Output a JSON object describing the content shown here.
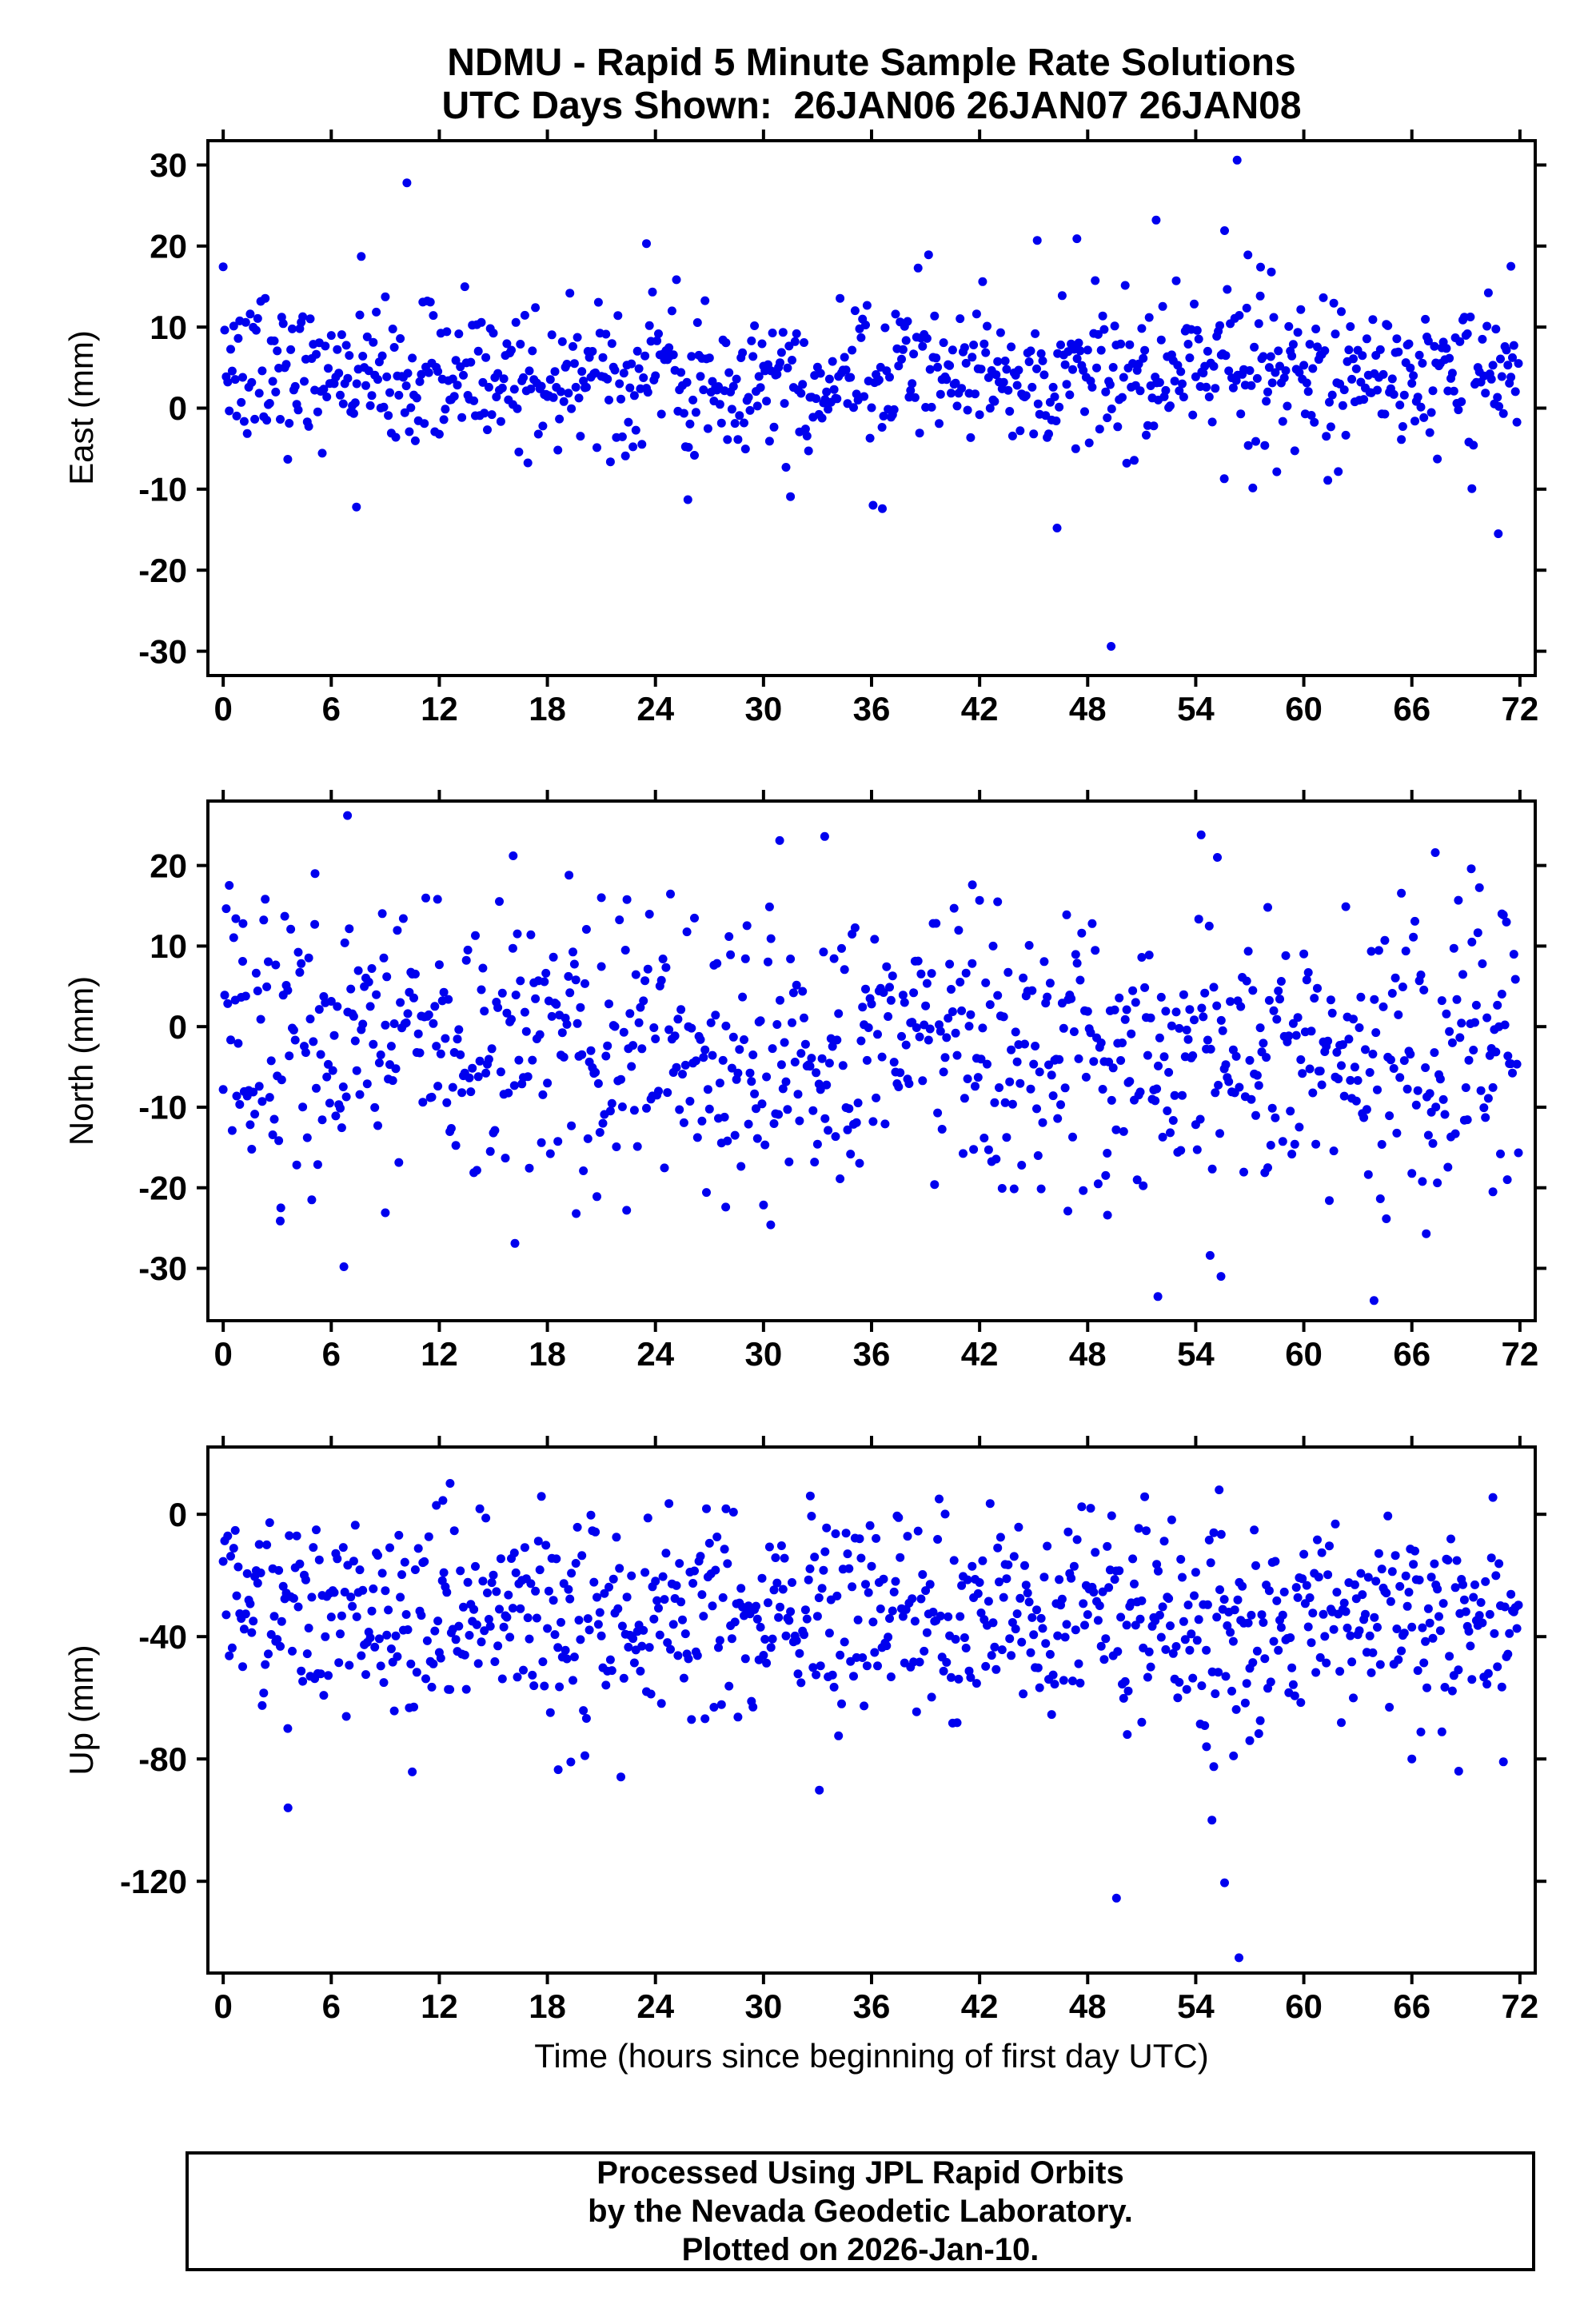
{
  "chart_data": {
    "type": "scatter",
    "title": "NDMU - Rapid 5 Minute Sample Rate Solutions",
    "subtitle": "UTC Days Shown:  26JAN06 26JAN07 26JAN08",
    "xlabel": "Time (hours since beginning of first day UTC)",
    "xlim": [
      -0.85,
      72.85
    ],
    "xticks": [
      0,
      6,
      12,
      18,
      24,
      30,
      36,
      42,
      48,
      54,
      60,
      66,
      72
    ],
    "x_unit": "hours",
    "marker": {
      "shape": "circle",
      "color": "#0000ee",
      "radius_px": 5.5
    },
    "frame_color": "#000000",
    "points_per_panel": 864,
    "sample_interval_hours": 0.0833333,
    "panels": [
      {
        "name": "east",
        "ylabel": "East (mm)",
        "ylim": [
          -33,
          33
        ],
        "yticks": [
          -30,
          -20,
          -10,
          0,
          10,
          20,
          30
        ],
        "approx_distribution": {
          "mean": 4.2,
          "std": 4.8,
          "clamp": [
            -12,
            19
          ],
          "seed": 7
        },
        "outliers": [
          [
            10.2,
            27.8
          ],
          [
            56.3,
            30.6
          ],
          [
            49.3,
            -29.4
          ],
          [
            70.8,
            -15.5
          ],
          [
            25.8,
            -11.3
          ],
          [
            36.6,
            -12.4
          ],
          [
            46.3,
            -14.8
          ],
          [
            7.4,
            -12.2
          ],
          [
            23.5,
            20.3
          ],
          [
            45.2,
            20.7
          ],
          [
            47.4,
            20.9
          ],
          [
            51.8,
            23.2
          ],
          [
            55.6,
            21.9
          ],
          [
            56.9,
            18.9
          ],
          [
            57.6,
            17.4
          ],
          [
            58.2,
            16.8
          ],
          [
            71.5,
            17.5
          ]
        ]
      },
      {
        "name": "north",
        "ylabel": "North (mm)",
        "ylim": [
          -36.5,
          28
        ],
        "yticks": [
          -30,
          -20,
          -10,
          0,
          10,
          20
        ],
        "approx_distribution": {
          "mean": -2.5,
          "std": 7.8,
          "clamp": [
            -25,
            18
          ],
          "seed": 13
        },
        "outliers": [
          [
            0.7,
            13.4
          ],
          [
            1.1,
            12.8
          ],
          [
            6.9,
            26.2
          ],
          [
            5.1,
            19.0
          ],
          [
            11.9,
            15.8
          ],
          [
            16.1,
            21.2
          ],
          [
            19.2,
            18.8
          ],
          [
            21.0,
            16.0
          ],
          [
            30.9,
            23.1
          ],
          [
            33.4,
            23.6
          ],
          [
            41.6,
            17.6
          ],
          [
            43.0,
            15.5
          ],
          [
            54.3,
            23.8
          ],
          [
            55.2,
            21.0
          ],
          [
            58.0,
            14.8
          ],
          [
            67.3,
            21.6
          ],
          [
            69.3,
            19.6
          ],
          [
            71.0,
            14.0
          ],
          [
            3.2,
            -22.5
          ],
          [
            6.7,
            -29.8
          ],
          [
            9.0,
            -23.1
          ],
          [
            16.2,
            -26.9
          ],
          [
            19.6,
            -23.2
          ],
          [
            22.4,
            -22.8
          ],
          [
            27.9,
            -22.4
          ],
          [
            30.4,
            -24.6
          ],
          [
            46.9,
            -22.9
          ],
          [
            49.1,
            -23.4
          ],
          [
            51.9,
            -33.5
          ],
          [
            54.8,
            -28.4
          ],
          [
            55.4,
            -31.0
          ],
          [
            63.9,
            -34.0
          ],
          [
            66.8,
            -25.7
          ],
          [
            70.5,
            -20.5
          ],
          [
            71.3,
            -19.0
          ]
        ]
      },
      {
        "name": "up",
        "ylabel": "Up (mm)",
        "ylim": [
          -150,
          22
        ],
        "yticks": [
          -120,
          -80,
          -40,
          0
        ],
        "approx_distribution": {
          "mean": -33,
          "std": 17,
          "clamp": [
            -86,
            6
          ],
          "seed": 29
        },
        "outliers": [
          [
            12.6,
            10.1
          ],
          [
            12.2,
            4.5
          ],
          [
            32.6,
            6.0
          ],
          [
            55.3,
            8.0
          ],
          [
            3.6,
            -96.0
          ],
          [
            33.1,
            -90.2
          ],
          [
            18.6,
            -83.5
          ],
          [
            19.3,
            -81.0
          ],
          [
            49.6,
            -125.5
          ],
          [
            54.9,
            -100.0
          ],
          [
            55.6,
            -120.5
          ],
          [
            56.4,
            -145.0
          ],
          [
            55.0,
            -82.5
          ],
          [
            56.1,
            -79.0
          ],
          [
            54.6,
            -76.0
          ],
          [
            57.0,
            -74.0
          ],
          [
            68.6,
            -84.0
          ],
          [
            66.0,
            -80.0
          ],
          [
            50.2,
            -72.0
          ],
          [
            51.0,
            -68.0
          ]
        ]
      }
    ]
  },
  "footer": {
    "line1": "Processed Using JPL Rapid Orbits",
    "line2": "by the Nevada Geodetic Laboratory.",
    "line3": "Plotted on 2026-Jan-10."
  }
}
